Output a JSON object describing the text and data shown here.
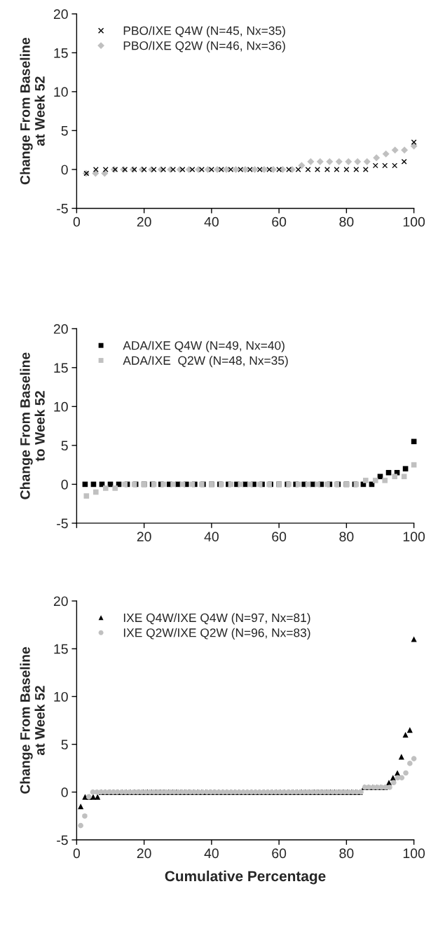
{
  "chart_data": [
    {
      "type": "scatter",
      "ylabel": "Change From Baseline\nat Week 52",
      "xlim": [
        0,
        100
      ],
      "xticks": [
        0,
        20,
        40,
        60,
        80,
        100
      ],
      "ylim": [
        -5,
        20
      ],
      "yticks": [
        -5,
        0,
        5,
        10,
        15,
        20
      ],
      "legend": "top left",
      "grid": false,
      "series": [
        {
          "name": "PBO/IXE Q4W (N=45, Nx=35)",
          "color": "#000000",
          "marker": "cross",
          "x": [
            2.9,
            5.7,
            8.6,
            11.4,
            14.3,
            17.1,
            20,
            22.9,
            25.7,
            28.6,
            31.4,
            34.3,
            37.1,
            40,
            42.9,
            45.7,
            48.6,
            51.4,
            54.3,
            57.1,
            60,
            62.9,
            65.7,
            68.6,
            71.4,
            74.3,
            77.1,
            80,
            82.9,
            85.7,
            88.6,
            91.4,
            94.3,
            97.1,
            100
          ],
          "values": [
            -0.5,
            0,
            0,
            0,
            0,
            0,
            0,
            0,
            0,
            0,
            0,
            0,
            0,
            0,
            0,
            0,
            0,
            0,
            0,
            0,
            0,
            0,
            0,
            0,
            0,
            0,
            0,
            0,
            0,
            0,
            0.5,
            0.5,
            0.5,
            1,
            3.5
          ]
        },
        {
          "name": "PBO/IXE Q2W (N=46, Nx=36)",
          "color": "#c0c0c0",
          "marker": "diamond",
          "x": [
            2.8,
            5.6,
            8.3,
            11.1,
            13.9,
            16.7,
            19.4,
            22.2,
            25,
            27.8,
            30.6,
            33.3,
            36.1,
            38.9,
            41.7,
            44.4,
            47.2,
            50,
            52.8,
            55.6,
            58.3,
            61.1,
            63.9,
            66.7,
            69.4,
            72.2,
            75,
            77.8,
            80.6,
            83.3,
            86.1,
            88.9,
            91.7,
            94.4,
            97.2,
            100
          ],
          "values": [
            -0.5,
            -0.5,
            -0.5,
            0,
            0,
            0,
            0,
            0,
            0,
            0,
            0,
            0,
            0,
            0,
            0,
            0,
            0,
            0,
            0,
            0,
            0,
            0,
            0,
            0.5,
            1,
            1,
            1,
            1,
            1,
            1,
            1,
            1.5,
            2,
            2.5,
            2.5,
            3
          ]
        }
      ]
    },
    {
      "type": "scatter",
      "ylabel": "Change From Baseline\nto Week 52",
      "xlim": [
        0,
        100
      ],
      "xticks": [
        {
          "value": 0,
          "label": null
        },
        20,
        40,
        60,
        80,
        100
      ],
      "ylim": [
        -5,
        20
      ],
      "yticks": [
        -5,
        0,
        5,
        10,
        15,
        20
      ],
      "legend": "top left",
      "grid": false,
      "series": [
        {
          "name": "ADA/IXE Q4W (N=49, Nx=40)",
          "color": "#000000",
          "marker": "square",
          "x": [
            2.5,
            5,
            7.5,
            10,
            12.5,
            15,
            17.5,
            20,
            22.5,
            25,
            27.5,
            30,
            32.5,
            35,
            37.5,
            40,
            42.5,
            45,
            47.5,
            50,
            52.5,
            55,
            57.5,
            60,
            62.5,
            65,
            67.5,
            70,
            72.5,
            75,
            77.5,
            80,
            82.5,
            85,
            87.5,
            90,
            92.5,
            95,
            97.5,
            100
          ],
          "values": [
            0,
            0,
            0,
            0,
            0,
            0,
            0,
            0,
            0,
            0,
            0,
            0,
            0,
            0,
            0,
            0,
            0,
            0,
            0,
            0,
            0,
            0,
            0,
            0,
            0,
            0,
            0,
            0,
            0,
            0,
            0,
            0,
            0,
            0,
            0,
            1,
            1.5,
            1.5,
            2,
            5.5
          ]
        },
        {
          "name": "ADA/IXE  Q2W (N=48, Nx=35)",
          "color": "#c0c0c0",
          "marker": "square",
          "x": [
            2.9,
            5.7,
            8.6,
            11.4,
            14.3,
            17.1,
            20,
            22.9,
            25.7,
            28.6,
            31.4,
            34.3,
            37.1,
            40,
            42.9,
            45.7,
            48.6,
            51.4,
            54.3,
            57.1,
            60,
            62.9,
            65.7,
            68.6,
            71.4,
            74.3,
            77.1,
            80,
            82.9,
            85.7,
            88.6,
            91.4,
            94.3,
            97.1,
            100
          ],
          "values": [
            -1.5,
            -1,
            -0.5,
            -0.5,
            0,
            0,
            0,
            0,
            0,
            0,
            0,
            0,
            0,
            0,
            0,
            0,
            0,
            0,
            0,
            0,
            0,
            0,
            0,
            0,
            0,
            0,
            0,
            0,
            0,
            0.5,
            0.5,
            0.5,
            1,
            1,
            2.5
          ]
        }
      ]
    },
    {
      "type": "scatter",
      "ylabel": "Change From Baseline\nat Week 52",
      "xlabel": "Cumulative Percentage",
      "xlim": [
        0,
        100
      ],
      "xticks": [
        0,
        20,
        40,
        60,
        80,
        100
      ],
      "ylim": [
        -5,
        20
      ],
      "yticks": [
        -5,
        0,
        5,
        10,
        15,
        20
      ],
      "legend": "top left",
      "grid": false,
      "series": [
        {
          "name": "IXE Q4W/IXE Q4W (N=97, Nx=81)",
          "color": "#000000",
          "marker": "triangle",
          "x": [
            1.2,
            2.5,
            3.7,
            4.9,
            6.2,
            7.4,
            8.6,
            9.9,
            11.1,
            12.3,
            13.6,
            14.8,
            16,
            17.3,
            18.5,
            19.8,
            21,
            22.2,
            23.5,
            24.7,
            25.9,
            27.2,
            28.4,
            29.6,
            30.9,
            32.1,
            33.3,
            34.6,
            35.8,
            37,
            38.3,
            39.5,
            40.7,
            42,
            43.2,
            44.4,
            45.7,
            46.9,
            48.1,
            49.4,
            50.6,
            51.9,
            53.1,
            54.3,
            55.6,
            56.8,
            58,
            59.3,
            60.5,
            61.7,
            63,
            64.2,
            65.4,
            66.7,
            67.9,
            69.1,
            70.4,
            71.6,
            72.8,
            74.1,
            75.3,
            76.5,
            77.8,
            79,
            80.2,
            81.5,
            82.7,
            84,
            85.2,
            86.4,
            87.7,
            88.9,
            90.1,
            91.4,
            92.6,
            93.8,
            95.1,
            96.3,
            97.5,
            98.8,
            100
          ],
          "values": [
            -1.5,
            -0.5,
            -0.5,
            -0.5,
            -0.5,
            0,
            0,
            0,
            0,
            0,
            0,
            0,
            0,
            0,
            0,
            0,
            0,
            0,
            0,
            0,
            0,
            0,
            0,
            0,
            0,
            0,
            0,
            0,
            0,
            0,
            0,
            0,
            0,
            0,
            0,
            0,
            0,
            0,
            0,
            0,
            0,
            0,
            0,
            0,
            0,
            0,
            0,
            0,
            0,
            0,
            0,
            0,
            0,
            0,
            0,
            0,
            0,
            0,
            0,
            0,
            0,
            0,
            0,
            0,
            0,
            0,
            0,
            0,
            0.5,
            0.5,
            0.5,
            0.5,
            0.5,
            0.5,
            1,
            1.5,
            2,
            3.7,
            6,
            6.5,
            16
          ]
        },
        {
          "name": "IXE Q2W/IXE Q2W (N=96, Nx=83)",
          "color": "#c0c0c0",
          "marker": "circle",
          "x": [
            1.2,
            2.4,
            3.6,
            4.8,
            6,
            7.2,
            8.4,
            9.6,
            10.8,
            12,
            13.3,
            14.5,
            15.7,
            16.9,
            18.1,
            19.3,
            20.5,
            21.7,
            22.9,
            24.1,
            25.3,
            26.5,
            27.7,
            28.9,
            30.1,
            31.3,
            32.5,
            33.7,
            34.9,
            36.1,
            37.3,
            38.6,
            39.8,
            41,
            42.2,
            43.4,
            44.6,
            45.8,
            47,
            48.2,
            49.4,
            50.6,
            51.8,
            53,
            54.2,
            55.4,
            56.6,
            57.8,
            59,
            60.2,
            61.4,
            62.7,
            63.9,
            65.1,
            66.3,
            67.5,
            68.7,
            69.9,
            71.1,
            72.3,
            73.5,
            74.7,
            75.9,
            77.1,
            78.3,
            79.5,
            80.7,
            81.9,
            83.1,
            84.3,
            85.5,
            86.7,
            88,
            89.2,
            90.4,
            91.6,
            92.8,
            94,
            95.2,
            96.4,
            97.6,
            98.8,
            100
          ],
          "values": [
            -3.5,
            -2.5,
            -0.5,
            0,
            0,
            0,
            0,
            0,
            0,
            0,
            0,
            0,
            0,
            0,
            0,
            0,
            0,
            0,
            0,
            0,
            0,
            0,
            0,
            0,
            0,
            0,
            0,
            0,
            0,
            0,
            0,
            0,
            0,
            0,
            0,
            0,
            0,
            0,
            0,
            0,
            0,
            0,
            0,
            0,
            0,
            0,
            0,
            0,
            0,
            0,
            0,
            0,
            0,
            0,
            0,
            0,
            0,
            0,
            0,
            0,
            0,
            0,
            0,
            0,
            0,
            0,
            0,
            0,
            0,
            0,
            0.5,
            0.5,
            0.5,
            0.5,
            0.5,
            0.5,
            0.5,
            1,
            1.5,
            1.5,
            2,
            3,
            3.5
          ]
        }
      ]
    }
  ]
}
